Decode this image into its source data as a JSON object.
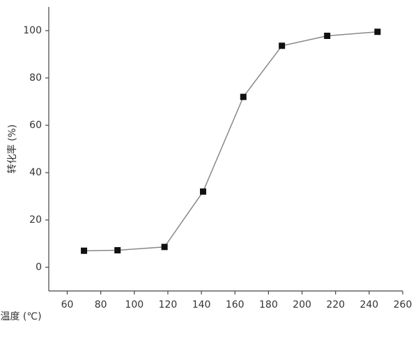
{
  "chart_data": {
    "type": "line",
    "x_label": "温度 (℃)",
    "y_label": "转化率 (%)",
    "x": [
      70,
      90,
      118,
      141,
      165,
      188,
      215,
      245
    ],
    "series": [
      {
        "color": "#888888",
        "marker_color": "#111111",
        "values": [
          7,
          7.2,
          8.6,
          32,
          72,
          93.6,
          97.8,
          99.5
        ]
      }
    ],
    "xlim": [
      49,
      260
    ],
    "ylim": [
      -10,
      110
    ],
    "xticks": [
      60,
      80,
      100,
      120,
      140,
      160,
      180,
      200,
      220,
      240,
      260
    ],
    "yticks": [
      0,
      20,
      40,
      60,
      80,
      100
    ]
  }
}
